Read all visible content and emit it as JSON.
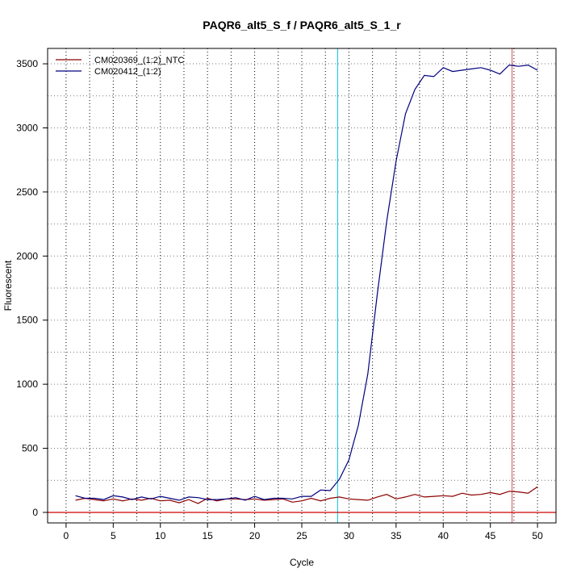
{
  "chart_data": {
    "type": "line",
    "title": "PAQR6_alt5_S_f / PAQR6_alt5_S_1_r",
    "xlabel": "Cycle",
    "ylabel": "Fluorescent",
    "xlim": [
      -1.96,
      51.96
    ],
    "ylim": [
      -82,
      3620
    ],
    "x_ticks": [
      0,
      5,
      10,
      15,
      20,
      25,
      30,
      35,
      40,
      45,
      50
    ],
    "y_ticks": [
      0,
      500,
      1000,
      1500,
      2000,
      2500,
      3000,
      3500
    ],
    "grid": "dotted",
    "legend_position": "top-left",
    "vertical_lines": [
      {
        "x": 28.8,
        "color": "#00c8d8"
      },
      {
        "x": 47.3,
        "color": "#e05050"
      }
    ],
    "horizontal_lines": [
      {
        "y": 0,
        "color": "#cc0000"
      }
    ],
    "x": [
      1,
      2,
      3,
      4,
      5,
      6,
      7,
      8,
      9,
      10,
      11,
      12,
      13,
      14,
      15,
      16,
      17,
      18,
      19,
      20,
      21,
      22,
      23,
      24,
      25,
      26,
      27,
      28,
      29,
      30,
      31,
      32,
      33,
      34,
      35,
      36,
      37,
      38,
      39,
      40,
      41,
      42,
      43,
      44,
      45,
      46,
      47,
      48,
      49,
      50
    ],
    "series": [
      {
        "name": "CM020369_(1:2)_NTC",
        "color": "#8b0000",
        "values": [
          95,
          110,
          100,
          90,
          105,
          90,
          105,
          95,
          110,
          90,
          95,
          75,
          100,
          70,
          110,
          90,
          105,
          105,
          100,
          105,
          95,
          100,
          105,
          80,
          90,
          110,
          90,
          110,
          120,
          105,
          100,
          95,
          120,
          140,
          105,
          120,
          140,
          120,
          125,
          130,
          125,
          150,
          135,
          140,
          155,
          140,
          165,
          160,
          150,
          200
        ]
      },
      {
        "name": "CM020412_(1:2)",
        "color": "#000080",
        "values": [
          130,
          110,
          110,
          100,
          130,
          120,
          100,
          120,
          105,
          125,
          110,
          95,
          120,
          115,
          100,
          100,
          105,
          115,
          95,
          125,
          100,
          110,
          110,
          105,
          125,
          125,
          175,
          170,
          260,
          410,
          680,
          1080,
          1700,
          2270,
          2740,
          3110,
          3300,
          3410,
          3400,
          3470,
          3440,
          3450,
          3460,
          3470,
          3450,
          3420,
          3490,
          3480,
          3490,
          3450
        ]
      }
    ]
  }
}
